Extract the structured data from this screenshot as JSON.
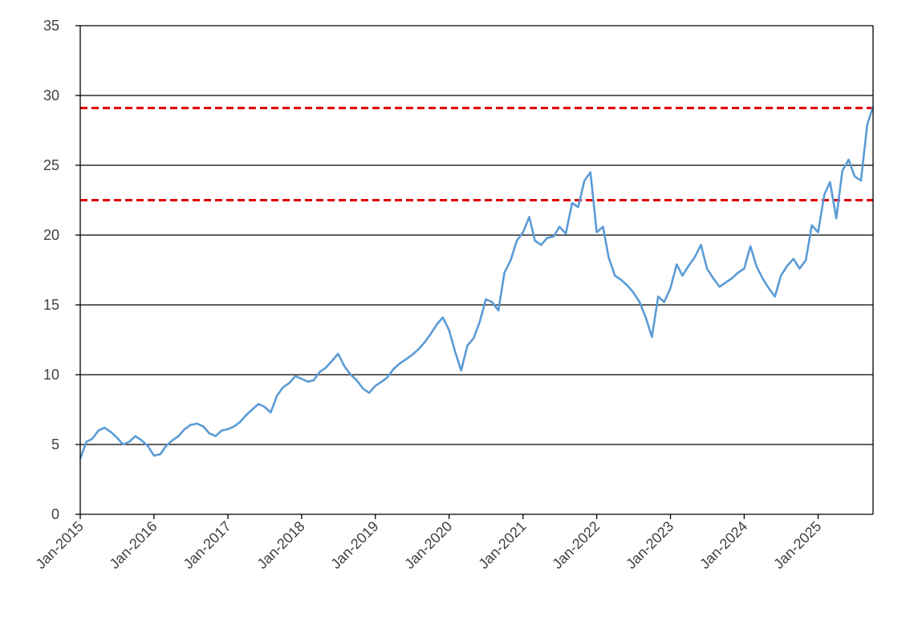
{
  "chart_data": {
    "type": "line",
    "title": "",
    "xlabel": "",
    "ylabel": "",
    "ylim": [
      0,
      35
    ],
    "yticks": [
      0,
      5,
      10,
      15,
      20,
      25,
      30,
      35
    ],
    "xlim": [
      "2015-01-01",
      "2025-09-30"
    ],
    "xticks": [
      "Jan-2015",
      "Jan-2016",
      "Jan-2017",
      "Jan-2018",
      "Jan-2019",
      "Jan-2020",
      "Jan-2021",
      "Jan-2022",
      "Jan-2023",
      "Jan-2024",
      "Jan-2025"
    ],
    "grid": "horizontal",
    "legend": "none",
    "colors": {
      "series": "#5b9bd5",
      "reference": "#e00000",
      "grid": "#000000",
      "text": "#404040"
    },
    "series": [
      {
        "x": [
          "2015-01-01",
          "2015-02-01",
          "2015-03-01",
          "2015-04-01",
          "2015-05-01",
          "2015-06-01",
          "2015-07-01",
          "2015-08-01",
          "2015-09-01",
          "2015-10-01",
          "2015-11-01",
          "2015-12-01",
          "2016-01-01",
          "2016-02-01",
          "2016-03-01",
          "2016-04-01",
          "2016-05-01",
          "2016-06-01",
          "2016-07-01",
          "2016-08-01",
          "2016-09-01",
          "2016-10-01",
          "2016-11-01",
          "2016-12-01",
          "2017-01-01",
          "2017-02-01",
          "2017-03-01",
          "2017-04-01",
          "2017-05-01",
          "2017-06-01",
          "2017-07-01",
          "2017-08-01",
          "2017-09-01",
          "2017-10-01",
          "2017-11-01",
          "2017-12-01",
          "2018-01-01",
          "2018-02-01",
          "2018-03-01",
          "2018-04-01",
          "2018-05-01",
          "2018-06-01",
          "2018-07-01",
          "2018-08-01",
          "2018-09-01",
          "2018-10-01",
          "2018-11-01",
          "2018-12-01",
          "2019-01-01",
          "2019-02-01",
          "2019-03-01",
          "2019-04-01",
          "2019-05-01",
          "2019-06-01",
          "2019-07-01",
          "2019-08-01",
          "2019-09-01",
          "2019-10-01",
          "2019-11-01",
          "2019-12-01",
          "2020-01-01",
          "2020-02-01",
          "2020-03-01",
          "2020-04-01",
          "2020-05-01",
          "2020-06-01",
          "2020-07-01",
          "2020-08-01",
          "2020-09-01",
          "2020-10-01",
          "2020-11-01",
          "2020-12-01",
          "2021-01-01",
          "2021-02-01",
          "2021-03-01",
          "2021-04-01",
          "2021-05-01",
          "2021-06-01",
          "2021-07-01",
          "2021-08-01",
          "2021-09-01",
          "2021-10-01",
          "2021-11-01",
          "2021-12-01",
          "2022-01-01",
          "2022-02-01",
          "2022-03-01",
          "2022-04-01",
          "2022-05-01",
          "2022-06-01",
          "2022-07-01",
          "2022-08-01",
          "2022-09-01",
          "2022-10-01",
          "2022-11-01",
          "2022-12-01",
          "2023-01-01",
          "2023-02-01",
          "2023-03-01",
          "2023-04-01",
          "2023-05-01",
          "2023-06-01",
          "2023-07-01",
          "2023-08-01",
          "2023-09-01",
          "2023-10-01",
          "2023-11-01",
          "2023-12-01",
          "2024-01-01",
          "2024-02-01",
          "2024-03-01",
          "2024-04-01",
          "2024-05-01",
          "2024-06-01",
          "2024-07-01",
          "2024-08-01",
          "2024-09-01",
          "2024-10-01",
          "2024-11-01",
          "2024-12-01",
          "2025-01-01",
          "2025-02-01",
          "2025-03-01",
          "2025-04-01",
          "2025-05-01",
          "2025-06-01",
          "2025-07-01",
          "2025-08-01",
          "2025-09-01",
          "2025-09-30"
        ],
        "values": [
          4.0,
          5.2,
          5.4,
          6.0,
          6.2,
          5.9,
          5.5,
          5.0,
          5.2,
          5.6,
          5.3,
          4.9,
          4.2,
          4.3,
          4.9,
          5.3,
          5.6,
          6.1,
          6.4,
          6.5,
          6.3,
          5.8,
          5.6,
          6.0,
          6.1,
          6.3,
          6.6,
          7.1,
          7.5,
          7.9,
          7.7,
          7.3,
          8.5,
          9.1,
          9.4,
          9.9,
          9.7,
          9.5,
          9.6,
          10.2,
          10.5,
          11.0,
          11.5,
          10.6,
          10.0,
          9.6,
          9.0,
          8.7,
          9.2,
          9.5,
          9.8,
          10.4,
          10.8,
          11.1,
          11.4,
          11.8,
          12.3,
          12.9,
          13.6,
          14.1,
          13.2,
          11.6,
          10.3,
          12.1,
          12.6,
          13.8,
          15.4,
          15.2,
          14.6,
          17.3,
          18.2,
          19.6,
          20.2,
          21.3,
          19.6,
          19.3,
          19.8,
          19.9,
          20.6,
          20.1,
          22.3,
          22.0,
          23.9,
          24.5,
          20.2,
          20.6,
          18.4,
          17.1,
          16.8,
          16.4,
          15.9,
          15.2,
          14.1,
          12.7,
          15.6,
          15.2,
          16.2,
          17.9,
          17.1,
          17.8,
          18.4,
          19.3,
          17.6,
          16.9,
          16.3,
          16.6,
          16.9,
          17.3,
          17.6,
          19.2,
          17.8,
          16.9,
          16.2,
          15.6,
          17.1,
          17.8,
          18.3,
          17.6,
          18.2,
          20.7,
          20.2,
          22.9,
          23.8,
          21.2,
          24.6,
          25.4,
          24.2,
          23.9,
          27.9,
          29.2
        ]
      }
    ],
    "reference_lines": [
      {
        "y": 29.1,
        "style": "dashed"
      },
      {
        "y": 22.5,
        "style": "dashed"
      }
    ]
  }
}
